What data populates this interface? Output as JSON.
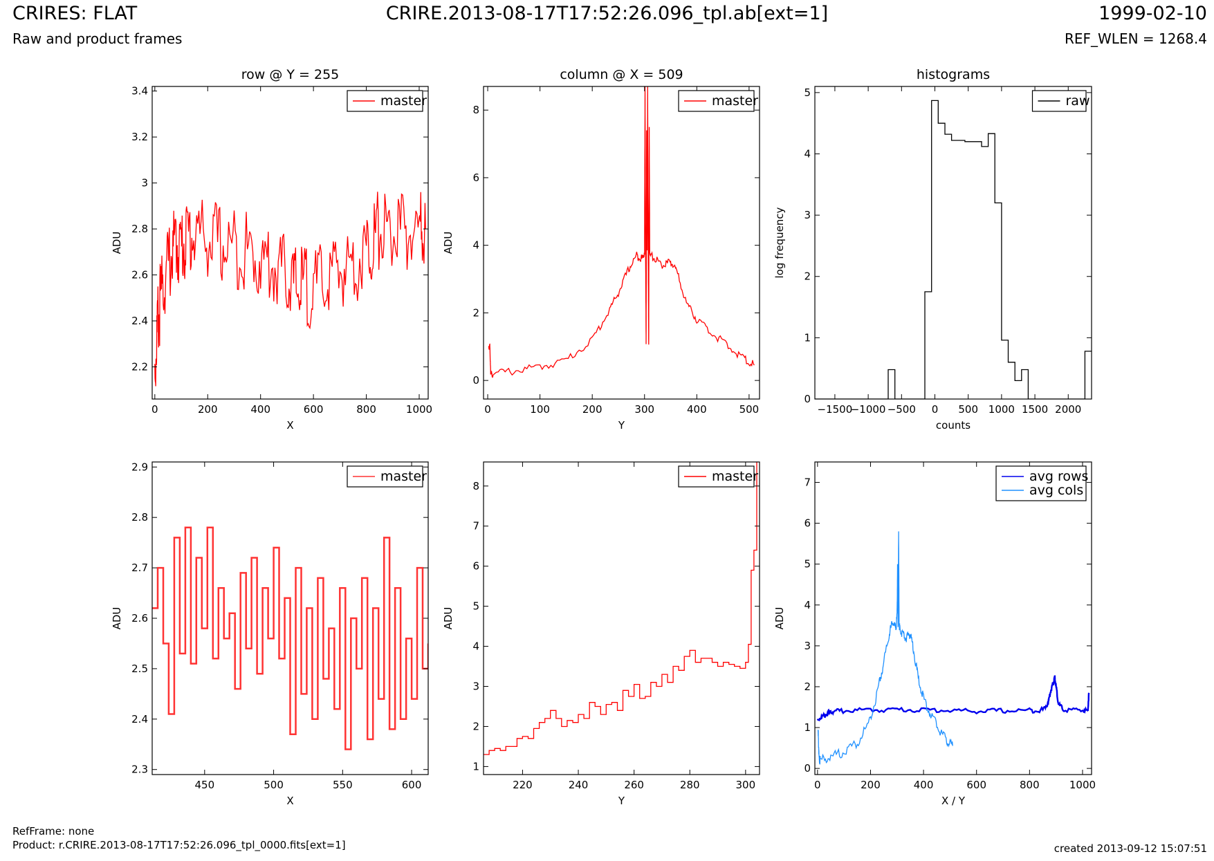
{
  "header": {
    "title": "CRIRES: FLAT",
    "subtitle": "Raw and product frames",
    "file": "CRIRE.2013-08-17T17:52:26.096_tpl.ab[ext=1]",
    "date": "1999-02-10",
    "ref_wlen": "REF_WLEN = 1268.4"
  },
  "footer": {
    "ref_frame": "RefFrame: none",
    "product": "Product: r.CRIRE.2013-08-17T17:52:26.096_tpl_0000.fits[ext=1]",
    "created": "created 2013-09-12 15:07:51"
  },
  "colors": {
    "master": "#ff0000",
    "master_zoom": "#ff3333",
    "raw": "#000000",
    "avg_rows": "#0000ee",
    "avg_cols": "#1e90ff"
  },
  "chart_data": [
    {
      "id": "row",
      "type": "line",
      "title": "row @ Y = 255",
      "xlabel": "X",
      "ylabel": "ADU",
      "xlim": [
        -10,
        1034
      ],
      "ylim": [
        2.06,
        3.42
      ],
      "xticks": [
        0,
        200,
        400,
        600,
        800,
        1000
      ],
      "yticks": [
        2.2,
        2.4,
        2.6,
        2.8,
        3.0,
        3.2,
        3.4
      ],
      "legend_position": "top-right",
      "series": [
        {
          "name": "master",
          "color": "#ff0000",
          "x": [
            0,
            10,
            20,
            40,
            60,
            80,
            100,
            120,
            150,
            200,
            250,
            300,
            350,
            400,
            450,
            500,
            530,
            560,
            600,
            650,
            700,
            750,
            800,
            830,
            860,
            900,
            950,
            1000,
            1024
          ],
          "y": [
            2.18,
            2.38,
            2.48,
            2.6,
            2.68,
            2.74,
            2.72,
            2.76,
            2.78,
            2.76,
            2.73,
            2.72,
            2.7,
            2.66,
            2.64,
            2.6,
            2.55,
            2.56,
            2.53,
            2.58,
            2.62,
            2.65,
            2.7,
            2.77,
            2.8,
            2.78,
            2.78,
            2.79,
            2.8
          ]
        }
      ]
    },
    {
      "id": "column",
      "type": "line",
      "title": "column @ X = 509",
      "xlabel": "Y",
      "ylabel": "ADU",
      "xlim": [
        -8,
        520
      ],
      "ylim": [
        -0.55,
        8.7
      ],
      "xticks": [
        0,
        100,
        200,
        300,
        400,
        500
      ],
      "yticks": [
        0,
        2,
        4,
        6,
        8
      ],
      "legend_position": "top-right",
      "series": [
        {
          "name": "master",
          "color": "#ff0000",
          "x": [
            2,
            4,
            6,
            10,
            50,
            100,
            150,
            200,
            230,
            250,
            270,
            285,
            295,
            300,
            301,
            302,
            303,
            304,
            305,
            306,
            307,
            308,
            309,
            310,
            320,
            335,
            350,
            360,
            380,
            400,
            430,
            460,
            490,
            510
          ],
          "y": [
            1.0,
            1.0,
            0.15,
            0.2,
            0.28,
            0.4,
            0.6,
            1.2,
            2.0,
            2.6,
            3.3,
            3.7,
            3.6,
            3.8,
            8.7,
            3.9,
            1.0,
            7.4,
            3.8,
            8.7,
            3.7,
            1.0,
            7.5,
            3.7,
            3.6,
            3.4,
            3.5,
            3.3,
            2.3,
            1.8,
            1.4,
            1.0,
            0.65,
            0.45
          ]
        }
      ]
    },
    {
      "id": "histogram",
      "type": "line",
      "title": "histograms",
      "xlabel": "counts",
      "ylabel": "log frequency",
      "xlim": [
        -1800,
        2350
      ],
      "ylim": [
        0,
        5.1
      ],
      "xticks": [
        -1500,
        -1000,
        -500,
        0,
        500,
        1000,
        1500,
        2000
      ],
      "yticks": [
        0,
        1,
        2,
        3,
        4,
        5
      ],
      "legend_position": "top-right",
      "series": [
        {
          "name": "raw",
          "color": "#000000",
          "step": true,
          "x": [
            -1800,
            -700,
            -700,
            -600,
            -600,
            -150,
            -150,
            -50,
            -50,
            50,
            50,
            150,
            150,
            250,
            250,
            450,
            450,
            700,
            700,
            800,
            800,
            900,
            900,
            1000,
            1000,
            1100,
            1100,
            1200,
            1200,
            1300,
            1300,
            1400,
            1400,
            2250,
            2250,
            2350
          ],
          "y": [
            0,
            0,
            0.48,
            0.48,
            0,
            0,
            1.75,
            1.75,
            4.87,
            4.87,
            4.5,
            4.5,
            4.32,
            4.32,
            4.22,
            4.22,
            4.2,
            4.2,
            4.12,
            4.12,
            4.33,
            4.33,
            3.2,
            3.2,
            0.96,
            0.96,
            0.6,
            0.6,
            0.3,
            0.3,
            0.48,
            0.48,
            0,
            0,
            0.78,
            0.78
          ]
        }
      ]
    },
    {
      "id": "row-zoom",
      "type": "line",
      "title": "",
      "xlabel": "X",
      "ylabel": "ADU",
      "xlim": [
        412,
        612
      ],
      "ylim": [
        2.29,
        2.91
      ],
      "xticks": [
        450,
        500,
        550,
        600
      ],
      "yticks": [
        2.3,
        2.4,
        2.5,
        2.6,
        2.7,
        2.8,
        2.9
      ],
      "legend_position": "top-right",
      "series": [
        {
          "name": "master",
          "color": "#ff3333",
          "step": true,
          "x": [
            412,
            416,
            420,
            424,
            428,
            432,
            436,
            440,
            444,
            448,
            452,
            456,
            460,
            464,
            468,
            472,
            476,
            480,
            484,
            488,
            492,
            496,
            500,
            504,
            508,
            512,
            516,
            520,
            524,
            528,
            532,
            536,
            540,
            544,
            548,
            552,
            556,
            560,
            564,
            568,
            572,
            576,
            580,
            584,
            588,
            592,
            596,
            600,
            604,
            608,
            612
          ],
          "y": [
            2.62,
            2.7,
            2.55,
            2.41,
            2.76,
            2.53,
            2.78,
            2.51,
            2.72,
            2.58,
            2.78,
            2.52,
            2.66,
            2.56,
            2.61,
            2.46,
            2.69,
            2.54,
            2.72,
            2.49,
            2.66,
            2.56,
            2.74,
            2.52,
            2.64,
            2.37,
            2.7,
            2.45,
            2.62,
            2.4,
            2.68,
            2.48,
            2.58,
            2.42,
            2.66,
            2.34,
            2.6,
            2.5,
            2.68,
            2.36,
            2.62,
            2.44,
            2.76,
            2.38,
            2.66,
            2.4,
            2.56,
            2.44,
            2.7,
            2.5,
            2.55
          ]
        }
      ]
    },
    {
      "id": "column-zoom",
      "type": "line",
      "title": "",
      "xlabel": "Y",
      "ylabel": "ADU",
      "xlim": [
        206,
        305
      ],
      "ylim": [
        0.8,
        8.6
      ],
      "xticks": [
        220,
        240,
        260,
        280,
        300
      ],
      "yticks": [
        1,
        2,
        3,
        4,
        5,
        6,
        7,
        8
      ],
      "legend_position": "top-right",
      "series": [
        {
          "name": "master",
          "color": "#ff0000",
          "step": true,
          "x": [
            206,
            208,
            210,
            212,
            214,
            216,
            218,
            220,
            222,
            224,
            226,
            228,
            230,
            232,
            234,
            236,
            238,
            240,
            242,
            244,
            246,
            248,
            250,
            252,
            254,
            256,
            258,
            260,
            262,
            264,
            266,
            268,
            270,
            272,
            274,
            276,
            278,
            280,
            282,
            284,
            286,
            288,
            290,
            292,
            294,
            296,
            298,
            300,
            301,
            302,
            303,
            304
          ],
          "y": [
            1.3,
            1.4,
            1.45,
            1.4,
            1.5,
            1.5,
            1.7,
            1.75,
            1.7,
            1.95,
            2.1,
            2.2,
            2.4,
            2.2,
            2.0,
            2.15,
            2.1,
            2.3,
            2.2,
            2.6,
            2.5,
            2.3,
            2.55,
            2.6,
            2.4,
            2.9,
            2.75,
            3.05,
            2.7,
            2.75,
            3.1,
            3.0,
            3.3,
            3.1,
            3.5,
            3.4,
            3.75,
            3.9,
            3.6,
            3.7,
            3.7,
            3.6,
            3.5,
            3.6,
            3.55,
            3.5,
            3.45,
            3.6,
            4.05,
            5.9,
            6.4,
            8.6
          ]
        }
      ]
    },
    {
      "id": "averages",
      "type": "line",
      "title": "",
      "xlabel": "X / Y",
      "ylabel": "ADU",
      "xlim": [
        -10,
        1034
      ],
      "ylim": [
        -0.15,
        7.5
      ],
      "xticks": [
        0,
        200,
        400,
        600,
        800,
        1000
      ],
      "yticks": [
        0,
        1,
        2,
        3,
        4,
        5,
        6,
        7
      ],
      "legend_position": "top-right",
      "series": [
        {
          "name": "avg rows",
          "color": "#0000ee",
          "x": [
            0,
            20,
            40,
            60,
            100,
            200,
            300,
            400,
            500,
            600,
            700,
            800,
            850,
            870,
            880,
            890,
            895,
            900,
            910,
            930,
            1000,
            1020,
            1024
          ],
          "y": [
            1.2,
            1.27,
            1.35,
            1.4,
            1.41,
            1.43,
            1.44,
            1.43,
            1.42,
            1.4,
            1.41,
            1.42,
            1.43,
            1.6,
            1.9,
            2.1,
            2.22,
            2.0,
            1.55,
            1.43,
            1.42,
            1.42,
            1.85
          ]
        },
        {
          "name": "avg cols",
          "color": "#1e90ff",
          "x": [
            2,
            4,
            6,
            10,
            50,
            100,
            150,
            200,
            230,
            250,
            270,
            285,
            295,
            300,
            302,
            304,
            306,
            308,
            310,
            320,
            335,
            350,
            360,
            380,
            400,
            430,
            460,
            490,
            510
          ],
          "y": [
            1.0,
            0.6,
            0.25,
            0.2,
            0.28,
            0.4,
            0.6,
            1.2,
            2.0,
            2.6,
            3.3,
            3.6,
            3.4,
            3.7,
            5.0,
            3.5,
            5.8,
            3.6,
            3.4,
            3.3,
            3.2,
            3.3,
            3.0,
            2.2,
            1.7,
            1.3,
            0.95,
            0.65,
            0.55
          ]
        }
      ]
    }
  ]
}
